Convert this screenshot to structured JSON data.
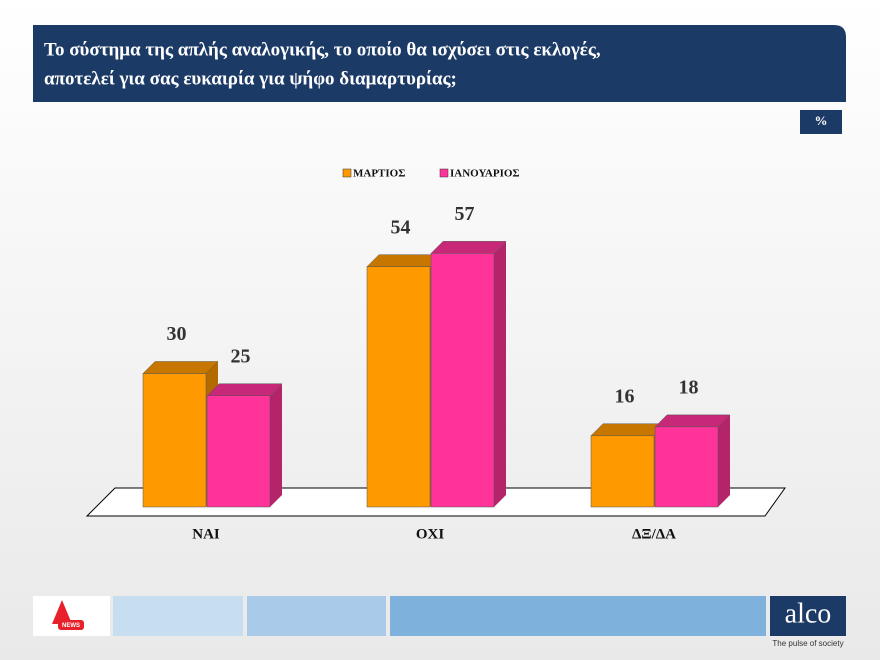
{
  "chart_data": {
    "type": "bar3d",
    "title": [
      "Το σύστημα της απλής αναλογικής, το οποίο θα ισχύσει στις εκλογές,",
      "αποτελεί για σας ευκαιρία για ψήφο διαμαρτυρίας;"
    ],
    "unit": "%",
    "categories": [
      "ΝΑΙ",
      "ΟΧΙ",
      "ΔΞ/ΔΑ"
    ],
    "series": [
      {
        "name": "ΜΑΡΤΙΟΣ",
        "color": "#ff9900",
        "values": [
          30,
          54,
          16
        ]
      },
      {
        "name": "ΙΑΝΟΥΑΡΙΟΣ",
        "color": "#ff3399",
        "values": [
          25,
          57,
          18
        ]
      }
    ]
  },
  "footer": {
    "news_logo": "NEWS",
    "logo": "alco",
    "tagline": "The pulse of society"
  }
}
